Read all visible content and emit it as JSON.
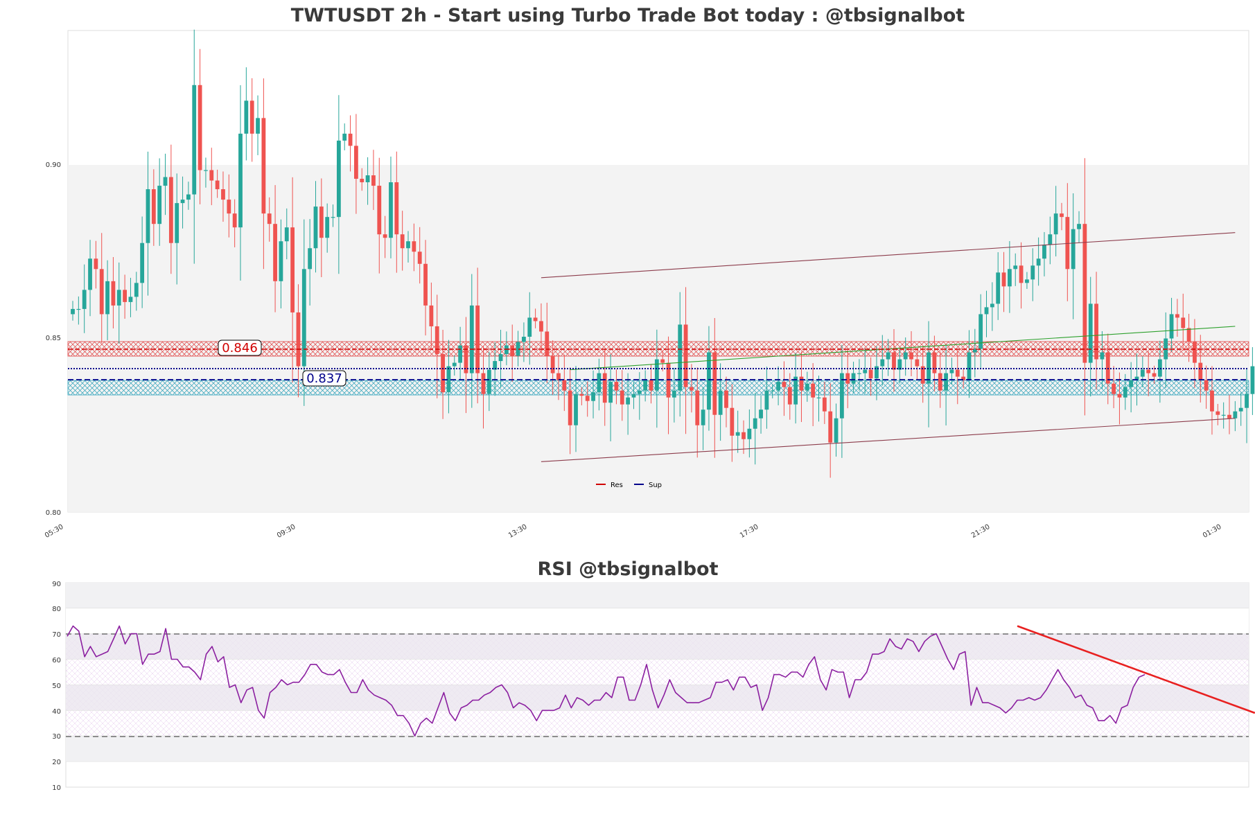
{
  "colors": {
    "up": "#26a69a",
    "down": "#ef5350",
    "resistance": "#d00000",
    "support": "#00008b",
    "support_zone": "#2aa0b8",
    "channel": "#8b3a4a",
    "trend": "#2ca02c",
    "rsi_line": "#8b1fa0",
    "rsi_trend": "#e82020",
    "band": "#f2f2f2"
  },
  "chart_data": [
    {
      "id": "price",
      "type": "candlestick",
      "title": "TWTUSDT 2h - Start using Turbo Trade Bot today : @tbsignalbot",
      "ylim": [
        0.8,
        0.94
      ],
      "yticks": [
        "0.80",
        "0.85",
        "0.90"
      ],
      "xticks": [
        "05:30",
        "09:30",
        "13:30",
        "17:30",
        "21:30",
        "01:30"
      ],
      "n_bars": 205,
      "resistance": {
        "value": 0.846,
        "label": "0.846",
        "zone": [
          0.844,
          0.849
        ]
      },
      "support": {
        "value": 0.837,
        "label": "0.837",
        "zone": [
          0.834,
          0.838
        ],
        "dotted": 0.8405
      },
      "legend": [
        "Res",
        "Sup"
      ],
      "channel_upper": [
        [
          81,
          0.8675
        ],
        [
          201,
          0.8805
        ]
      ],
      "channel_lower": [
        [
          81,
          0.8145
        ],
        [
          201,
          0.827
        ]
      ],
      "trendline": [
        [
          86,
          0.841
        ],
        [
          201,
          0.8535
        ]
      ],
      "closes": [
        0.8585,
        0.8585,
        0.864,
        0.873,
        0.87,
        0.857,
        0.8665,
        0.8595,
        0.864,
        0.8605,
        0.862,
        0.866,
        0.8775,
        0.893,
        0.883,
        0.894,
        0.8965,
        0.8775,
        0.889,
        0.89,
        0.8915,
        0.923,
        0.8985,
        0.8985,
        0.8955,
        0.893,
        0.89,
        0.886,
        0.882,
        0.909,
        0.9185,
        0.909,
        0.9135,
        0.886,
        0.883,
        0.8665,
        0.878,
        0.882,
        0.8575,
        0.842,
        0.87,
        0.876,
        0.888,
        0.879,
        0.885,
        0.885,
        0.907,
        0.909,
        0.9055,
        0.896,
        0.895,
        0.897,
        0.894,
        0.88,
        0.879,
        0.895,
        0.88,
        0.876,
        0.878,
        0.875,
        0.8715,
        0.8595,
        0.8535,
        0.8455,
        0.8345,
        0.842,
        0.843,
        0.848,
        0.84,
        0.8595,
        0.84,
        0.834,
        0.841,
        0.8435,
        0.8455,
        0.848,
        0.845,
        0.849,
        0.8505,
        0.856,
        0.855,
        0.852,
        0.845,
        0.84,
        0.838,
        0.835,
        0.825,
        0.834,
        0.8335,
        0.832,
        0.8345,
        0.84,
        0.8315,
        0.8375,
        0.835,
        0.831,
        0.833,
        0.834,
        0.835,
        0.838,
        0.835,
        0.844,
        0.843,
        0.833,
        0.835,
        0.854,
        0.836,
        0.835,
        0.825,
        0.8295,
        0.846,
        0.828,
        0.835,
        0.83,
        0.822,
        0.823,
        0.821,
        0.824,
        0.827,
        0.8295,
        0.835,
        0.835,
        0.8375,
        0.836,
        0.831,
        0.839,
        0.835,
        0.837,
        0.833,
        0.833,
        0.829,
        0.82,
        0.827,
        0.84,
        0.837,
        0.84,
        0.84,
        0.841,
        0.8385,
        0.842,
        0.844,
        0.846,
        0.841,
        0.844,
        0.846,
        0.844,
        0.842,
        0.837,
        0.846,
        0.84,
        0.835,
        0.84,
        0.841,
        0.839,
        0.838,
        0.846,
        0.847,
        0.857,
        0.859,
        0.86,
        0.869,
        0.865,
        0.87,
        0.871,
        0.866,
        0.867,
        0.871,
        0.873,
        0.877,
        0.88,
        0.886,
        0.885,
        0.87,
        0.8815,
        0.883,
        0.843,
        0.86,
        0.844,
        0.846,
        0.837,
        0.834,
        0.833,
        0.836,
        0.838,
        0.839,
        0.841,
        0.84,
        0.839,
        0.844,
        0.85,
        0.857,
        0.856,
        0.853,
        0.849,
        0.843,
        0.838,
        0.835,
        0.829,
        0.828,
        0.828,
        0.827,
        0.829,
        0.83,
        0.834,
        0.842
      ]
    },
    {
      "id": "rsi",
      "type": "line",
      "title": "RSI @tbsignalbot",
      "ylim": [
        10,
        90
      ],
      "yticks": [
        "10",
        "20",
        "30",
        "40",
        "50",
        "60",
        "70",
        "80",
        "90"
      ],
      "overbought": 70,
      "oversold": 30,
      "trendline": [
        [
          164,
          73
        ],
        [
          205,
          39
        ]
      ],
      "values": [
        69,
        73,
        71,
        61,
        65,
        61,
        62,
        63,
        68,
        73,
        66,
        70,
        70,
        58,
        62,
        62,
        63,
        72,
        60,
        60,
        57,
        57,
        55,
        52,
        62,
        65,
        59,
        61,
        49,
        50,
        43,
        48,
        49,
        40,
        37,
        47,
        49,
        52,
        50,
        51,
        51,
        54,
        58,
        58,
        55,
        54,
        54,
        56,
        51,
        47,
        47,
        52,
        48,
        46,
        45,
        44,
        42,
        38,
        38,
        35,
        30,
        35,
        37,
        35,
        41,
        47,
        39,
        36,
        41,
        42,
        44,
        44,
        46,
        47,
        49,
        50,
        47,
        41,
        43,
        42,
        40,
        36,
        40,
        40,
        40,
        41,
        46,
        41,
        45,
        44,
        42,
        44,
        44,
        47,
        45,
        53,
        53,
        44,
        44,
        50,
        58,
        48,
        41,
        46,
        52,
        47,
        45,
        43,
        43,
        43,
        44,
        45,
        51,
        51,
        52,
        48,
        53,
        53,
        49,
        50,
        40,
        45,
        54,
        54,
        53,
        55,
        55,
        53,
        58,
        61,
        52,
        48,
        56,
        55,
        55,
        45,
        52,
        52,
        55,
        62,
        62,
        63,
        68,
        65,
        64,
        68,
        67,
        63,
        67,
        69,
        70,
        65,
        60,
        56,
        62,
        63,
        42,
        49,
        43,
        43,
        42,
        41,
        39,
        41,
        44,
        44,
        45,
        44,
        45,
        48,
        52,
        56,
        52,
        49,
        45,
        46,
        42,
        41,
        36,
        36,
        38,
        35,
        41,
        42,
        49,
        53,
        54
      ]
    }
  ]
}
